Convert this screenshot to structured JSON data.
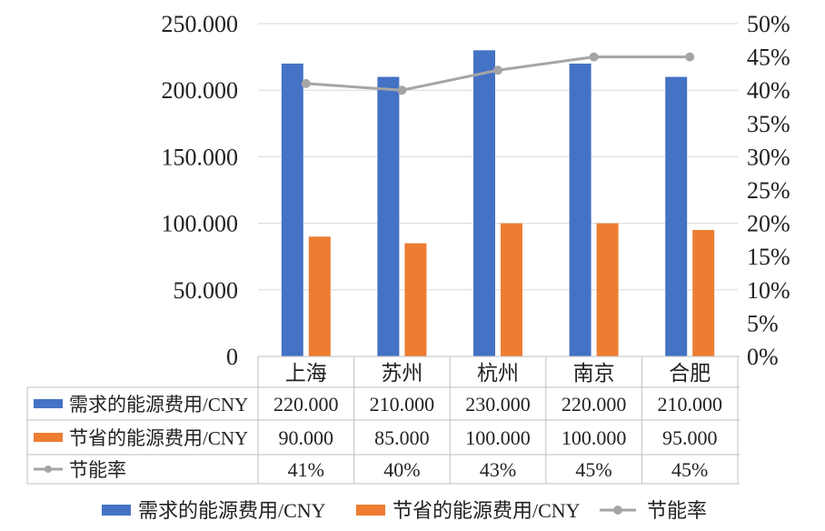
{
  "chart_data": {
    "type": "bar",
    "categories": [
      "上海",
      "苏州",
      "杭州",
      "南京",
      "合肥"
    ],
    "series": [
      {
        "name": "需求的能源费用/CNY",
        "kind": "bar",
        "axis": "left",
        "color": "#4472C4",
        "values": [
          220000,
          210000,
          230000,
          220000,
          210000
        ],
        "labels": [
          "220.000",
          "210.000",
          "230.000",
          "220.000",
          "210.000"
        ]
      },
      {
        "name": "节省的能源费用/CNY",
        "kind": "bar",
        "axis": "left",
        "color": "#ED7D31",
        "values": [
          90000,
          85000,
          100000,
          100000,
          95000
        ],
        "labels": [
          "90.000",
          "85.000",
          "100.000",
          "100.000",
          "95.000"
        ]
      },
      {
        "name": "节能率",
        "kind": "line",
        "axis": "right",
        "color": "#A5A5A5",
        "values": [
          0.41,
          0.4,
          0.43,
          0.45,
          0.45
        ],
        "labels": [
          "41%",
          "40%",
          "43%",
          "45%",
          "45%"
        ]
      }
    ],
    "left_axis": {
      "ylim": [
        0,
        250000
      ],
      "ticks": [
        0,
        50000,
        100000,
        150000,
        200000,
        250000
      ],
      "tick_labels": [
        "0",
        "50.000",
        "100.000",
        "150.000",
        "200.000",
        "250.000"
      ]
    },
    "right_axis": {
      "ylim": [
        0,
        0.5
      ],
      "ticks": [
        0,
        0.05,
        0.1,
        0.15,
        0.2,
        0.25,
        0.3,
        0.35,
        0.4,
        0.45,
        0.5
      ],
      "tick_labels": [
        "0%",
        "5%",
        "10%",
        "15%",
        "20%",
        "25%",
        "30%",
        "35%",
        "40%",
        "45%",
        "50%"
      ]
    },
    "grid": true,
    "legend": "bottom",
    "data_table": true
  }
}
